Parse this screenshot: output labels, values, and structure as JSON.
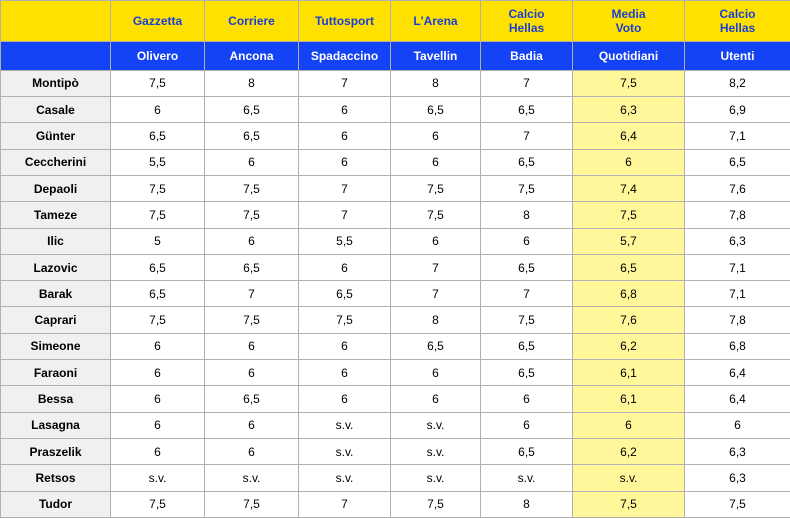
{
  "header": {
    "sources": [
      "Gazzetta",
      "Corriere",
      "Tuttosport",
      "L'Arena",
      "Calcio\nHellas",
      "Media\nVoto",
      "Calcio\nHellas"
    ],
    "authors": [
      "Olivero",
      "Ancona",
      "Spadaccino",
      "Tavellin",
      "Badia",
      "Quotidiani",
      "Utenti"
    ]
  },
  "table": {
    "rows": [
      {
        "name": "Montipò",
        "cells": [
          "7,5",
          "8",
          "7",
          "8",
          "7",
          "7,5",
          "8,2"
        ]
      },
      {
        "name": "Casale",
        "cells": [
          "6",
          "6,5",
          "6",
          "6,5",
          "6,5",
          "6,3",
          "6,9"
        ]
      },
      {
        "name": "Günter",
        "cells": [
          "6,5",
          "6,5",
          "6",
          "6",
          "7",
          "6,4",
          "7,1"
        ]
      },
      {
        "name": "Ceccherini",
        "cells": [
          "5,5",
          "6",
          "6",
          "6",
          "6,5",
          "6",
          "6,5"
        ]
      },
      {
        "name": "Depaoli",
        "cells": [
          "7,5",
          "7,5",
          "7",
          "7,5",
          "7,5",
          "7,4",
          "7,6"
        ]
      },
      {
        "name": "Tameze",
        "cells": [
          "7,5",
          "7,5",
          "7",
          "7,5",
          "8",
          "7,5",
          "7,8"
        ]
      },
      {
        "name": "Ilic",
        "cells": [
          "5",
          "6",
          "5,5",
          "6",
          "6",
          "5,7",
          "6,3"
        ]
      },
      {
        "name": "Lazovic",
        "cells": [
          "6,5",
          "6,5",
          "6",
          "7",
          "6,5",
          "6,5",
          "7,1"
        ]
      },
      {
        "name": "Barak",
        "cells": [
          "6,5",
          "7",
          "6,5",
          "7",
          "7",
          "6,8",
          "7,1"
        ]
      },
      {
        "name": "Caprari",
        "cells": [
          "7,5",
          "7,5",
          "7,5",
          "8",
          "7,5",
          "7,6",
          "7,8"
        ]
      },
      {
        "name": "Simeone",
        "cells": [
          "6",
          "6",
          "6",
          "6,5",
          "6,5",
          "6,2",
          "6,8"
        ]
      },
      {
        "name": "Faraoni",
        "cells": [
          "6",
          "6",
          "6",
          "6",
          "6,5",
          "6,1",
          "6,4"
        ]
      },
      {
        "name": "Bessa",
        "cells": [
          "6",
          "6,5",
          "6",
          "6",
          "6",
          "6,1",
          "6,4"
        ]
      },
      {
        "name": "Lasagna",
        "cells": [
          "6",
          "6",
          "s.v.",
          "s.v.",
          "6",
          "6",
          "6"
        ]
      },
      {
        "name": "Praszelik",
        "cells": [
          "6",
          "6",
          "s.v.",
          "s.v.",
          "6,5",
          "6,2",
          "6,3"
        ]
      },
      {
        "name": "Retsos",
        "cells": [
          "s.v.",
          "s.v.",
          "s.v.",
          "s.v.",
          "s.v.",
          "s.v.",
          "6,3"
        ]
      },
      {
        "name": "Tudor",
        "cells": [
          "7,5",
          "7,5",
          "7",
          "7,5",
          "8",
          "7,5",
          "7,5"
        ]
      }
    ]
  }
}
